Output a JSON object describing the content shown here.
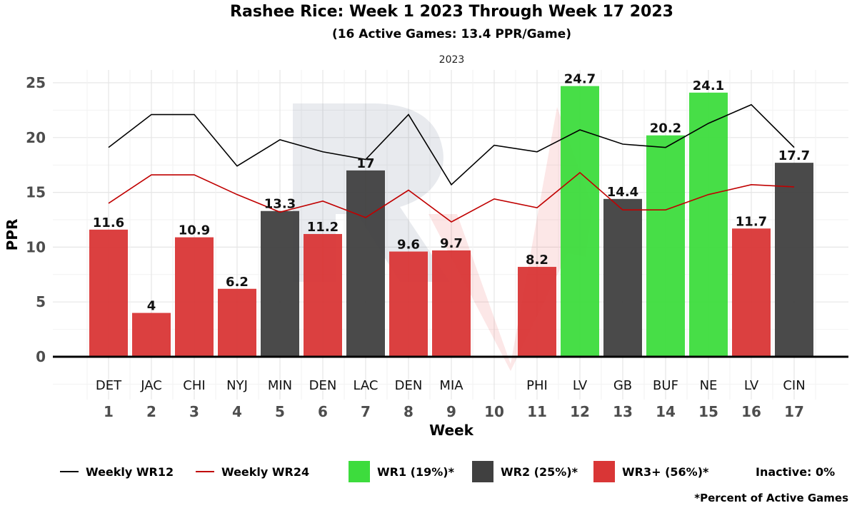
{
  "title": "Rashee Rice: Week 1 2023 Through Week 17 2023",
  "subtitle": "(16 Active Games: 13.4 PPR/Game)",
  "facet_label": "2023",
  "colors": {
    "wr1": "#3ddc3d",
    "wr2": "#404040",
    "wr3": "#d93636",
    "wr12_line": "#000000",
    "wr24_line": "#c00000"
  },
  "chart_data": {
    "type": "bar",
    "title": "Rashee Rice: Week 1 2023 Through Week 17 2023",
    "xlabel": "Week",
    "ylabel": "PPR",
    "ylim": [
      0,
      25
    ],
    "yticks": [
      0,
      5,
      10,
      15,
      20,
      25
    ],
    "weeks": [
      "1",
      "2",
      "3",
      "4",
      "5",
      "6",
      "7",
      "8",
      "9",
      "10",
      "11",
      "12",
      "13",
      "14",
      "15",
      "16",
      "17"
    ],
    "opponents": [
      "DET",
      "JAC",
      "CHI",
      "NYJ",
      "MIN",
      "DEN",
      "LAC",
      "DEN",
      "MIA",
      "",
      "PHI",
      "LV",
      "GB",
      "BUF",
      "NE",
      "LV",
      "CIN"
    ],
    "bars": [
      {
        "week": "1",
        "value": 11.6,
        "label": "11.6",
        "tier": "wr3"
      },
      {
        "week": "2",
        "value": 4,
        "label": "4",
        "tier": "wr3"
      },
      {
        "week": "3",
        "value": 10.9,
        "label": "10.9",
        "tier": "wr3"
      },
      {
        "week": "4",
        "value": 6.2,
        "label": "6.2",
        "tier": "wr3"
      },
      {
        "week": "5",
        "value": 13.3,
        "label": "13.3",
        "tier": "wr2"
      },
      {
        "week": "6",
        "value": 11.2,
        "label": "11.2",
        "tier": "wr3"
      },
      {
        "week": "7",
        "value": 17,
        "label": "17",
        "tier": "wr2"
      },
      {
        "week": "8",
        "value": 9.6,
        "label": "9.6",
        "tier": "wr3"
      },
      {
        "week": "9",
        "value": 9.7,
        "label": "9.7",
        "tier": "wr3"
      },
      {
        "week": "11",
        "value": 8.2,
        "label": "8.2",
        "tier": "wr3"
      },
      {
        "week": "12",
        "value": 24.7,
        "label": "24.7",
        "tier": "wr1"
      },
      {
        "week": "13",
        "value": 14.4,
        "label": "14.4",
        "tier": "wr2"
      },
      {
        "week": "14",
        "value": 20.2,
        "label": "20.2",
        "tier": "wr1"
      },
      {
        "week": "15",
        "value": 24.1,
        "label": "24.1",
        "tier": "wr1"
      },
      {
        "week": "16",
        "value": 11.7,
        "label": "11.7",
        "tier": "wr3"
      },
      {
        "week": "17",
        "value": 17.7,
        "label": "17.7",
        "tier": "wr2"
      }
    ],
    "lines": [
      {
        "name": "Weekly WR12",
        "color": "#000000",
        "values": [
          19.1,
          22.1,
          22.1,
          17.4,
          19.8,
          18.7,
          18.0,
          22.1,
          15.7,
          19.3,
          18.7,
          20.7,
          19.4,
          19.1,
          21.3,
          23.0,
          19.1
        ]
      },
      {
        "name": "Weekly WR24",
        "color": "#c00000",
        "values": [
          14.0,
          16.6,
          16.6,
          14.8,
          13.2,
          14.2,
          12.7,
          15.2,
          12.3,
          14.4,
          13.6,
          16.8,
          13.4,
          13.4,
          14.8,
          15.7,
          15.5
        ]
      }
    ]
  },
  "legend": {
    "wr12": "Weekly WR12",
    "wr24": "Weekly WR24",
    "wr1": "WR1 (19%)*",
    "wr2": "WR2 (25%)*",
    "wr3": "WR3+ (56%)*",
    "inactive": "Inactive: 0%"
  },
  "footnote": "*Percent of Active Games"
}
